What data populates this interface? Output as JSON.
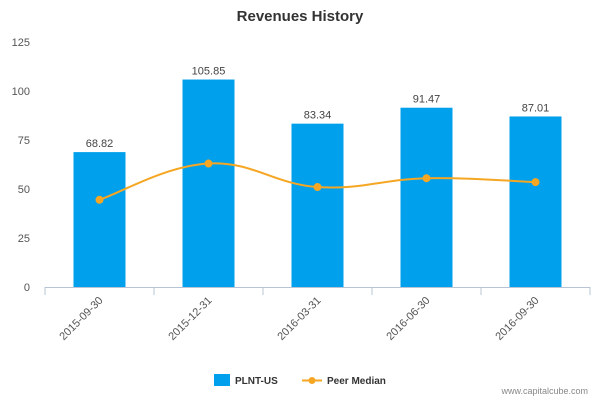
{
  "chart_data": {
    "type": "bar",
    "title": "Revenues History",
    "categories": [
      "2015-09-30",
      "2015-12-31",
      "2016-03-31",
      "2016-06-30",
      "2016-09-30"
    ],
    "series": [
      {
        "name": "PLNT-US",
        "type": "bar",
        "values": [
          68.82,
          105.85,
          83.34,
          91.47,
          87.01
        ],
        "color": "#00a0ec"
      },
      {
        "name": "Peer Median",
        "type": "line",
        "values": [
          44.5,
          63.0,
          51.0,
          55.5,
          53.5
        ],
        "color": "#f5a623"
      }
    ],
    "data_labels": [
      "68.82",
      "105.85",
      "83.34",
      "91.47",
      "87.01"
    ],
    "y_ticks": [
      "0",
      "25",
      "50",
      "75",
      "100",
      "125"
    ],
    "ylim": [
      0,
      125
    ],
    "grid": false,
    "legend_position": "bottom-center"
  },
  "credit": "www.capitalcube.com"
}
